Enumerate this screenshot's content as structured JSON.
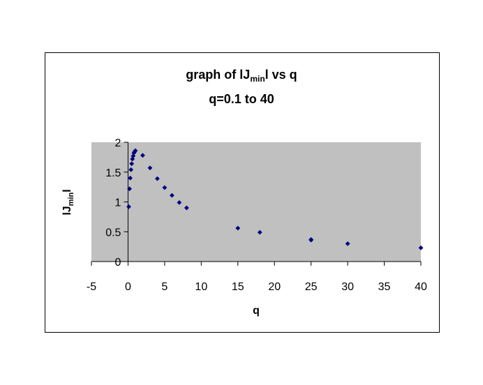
{
  "chart_data": {
    "type": "scatter",
    "title_parts": {
      "pre": "graph of lJ",
      "sub": "min",
      "post": "l vs q"
    },
    "subtitle": "q=0.1 to 40",
    "xlabel": "q",
    "ylabel_parts": {
      "pre": "lJ",
      "sub": "min",
      "post": "l"
    },
    "xlim": [
      -5,
      40
    ],
    "ylim": [
      0,
      2
    ],
    "x_ticks": [
      "-5",
      "0",
      "5",
      "10",
      "15",
      "20",
      "25",
      "30",
      "35",
      "40"
    ],
    "y_ticks": [
      "0",
      "0.5",
      "1",
      "1.5",
      "2"
    ],
    "grid": false,
    "plot_background": "#c0c0c0",
    "marker_color": "#000080",
    "points": [
      {
        "x": 0.1,
        "y": 0.92
      },
      {
        "x": 0.2,
        "y": 1.22
      },
      {
        "x": 0.3,
        "y": 1.4
      },
      {
        "x": 0.4,
        "y": 1.54
      },
      {
        "x": 0.5,
        "y": 1.64
      },
      {
        "x": 0.6,
        "y": 1.72
      },
      {
        "x": 0.7,
        "y": 1.77
      },
      {
        "x": 0.8,
        "y": 1.82
      },
      {
        "x": 0.9,
        "y": 1.84
      },
      {
        "x": 1,
        "y": 1.86
      },
      {
        "x": 2,
        "y": 1.78
      },
      {
        "x": 3,
        "y": 1.57
      },
      {
        "x": 4,
        "y": 1.39
      },
      {
        "x": 5,
        "y": 1.24
      },
      {
        "x": 6,
        "y": 1.11
      },
      {
        "x": 7,
        "y": 0.99
      },
      {
        "x": 8,
        "y": 0.9
      },
      {
        "x": 15,
        "y": 0.56
      },
      {
        "x": 18,
        "y": 0.49
      },
      {
        "x": 25,
        "y": 0.37
      },
      {
        "x": 25,
        "y": 0.36
      },
      {
        "x": 30,
        "y": 0.3
      },
      {
        "x": 40,
        "y": 0.23
      }
    ]
  }
}
